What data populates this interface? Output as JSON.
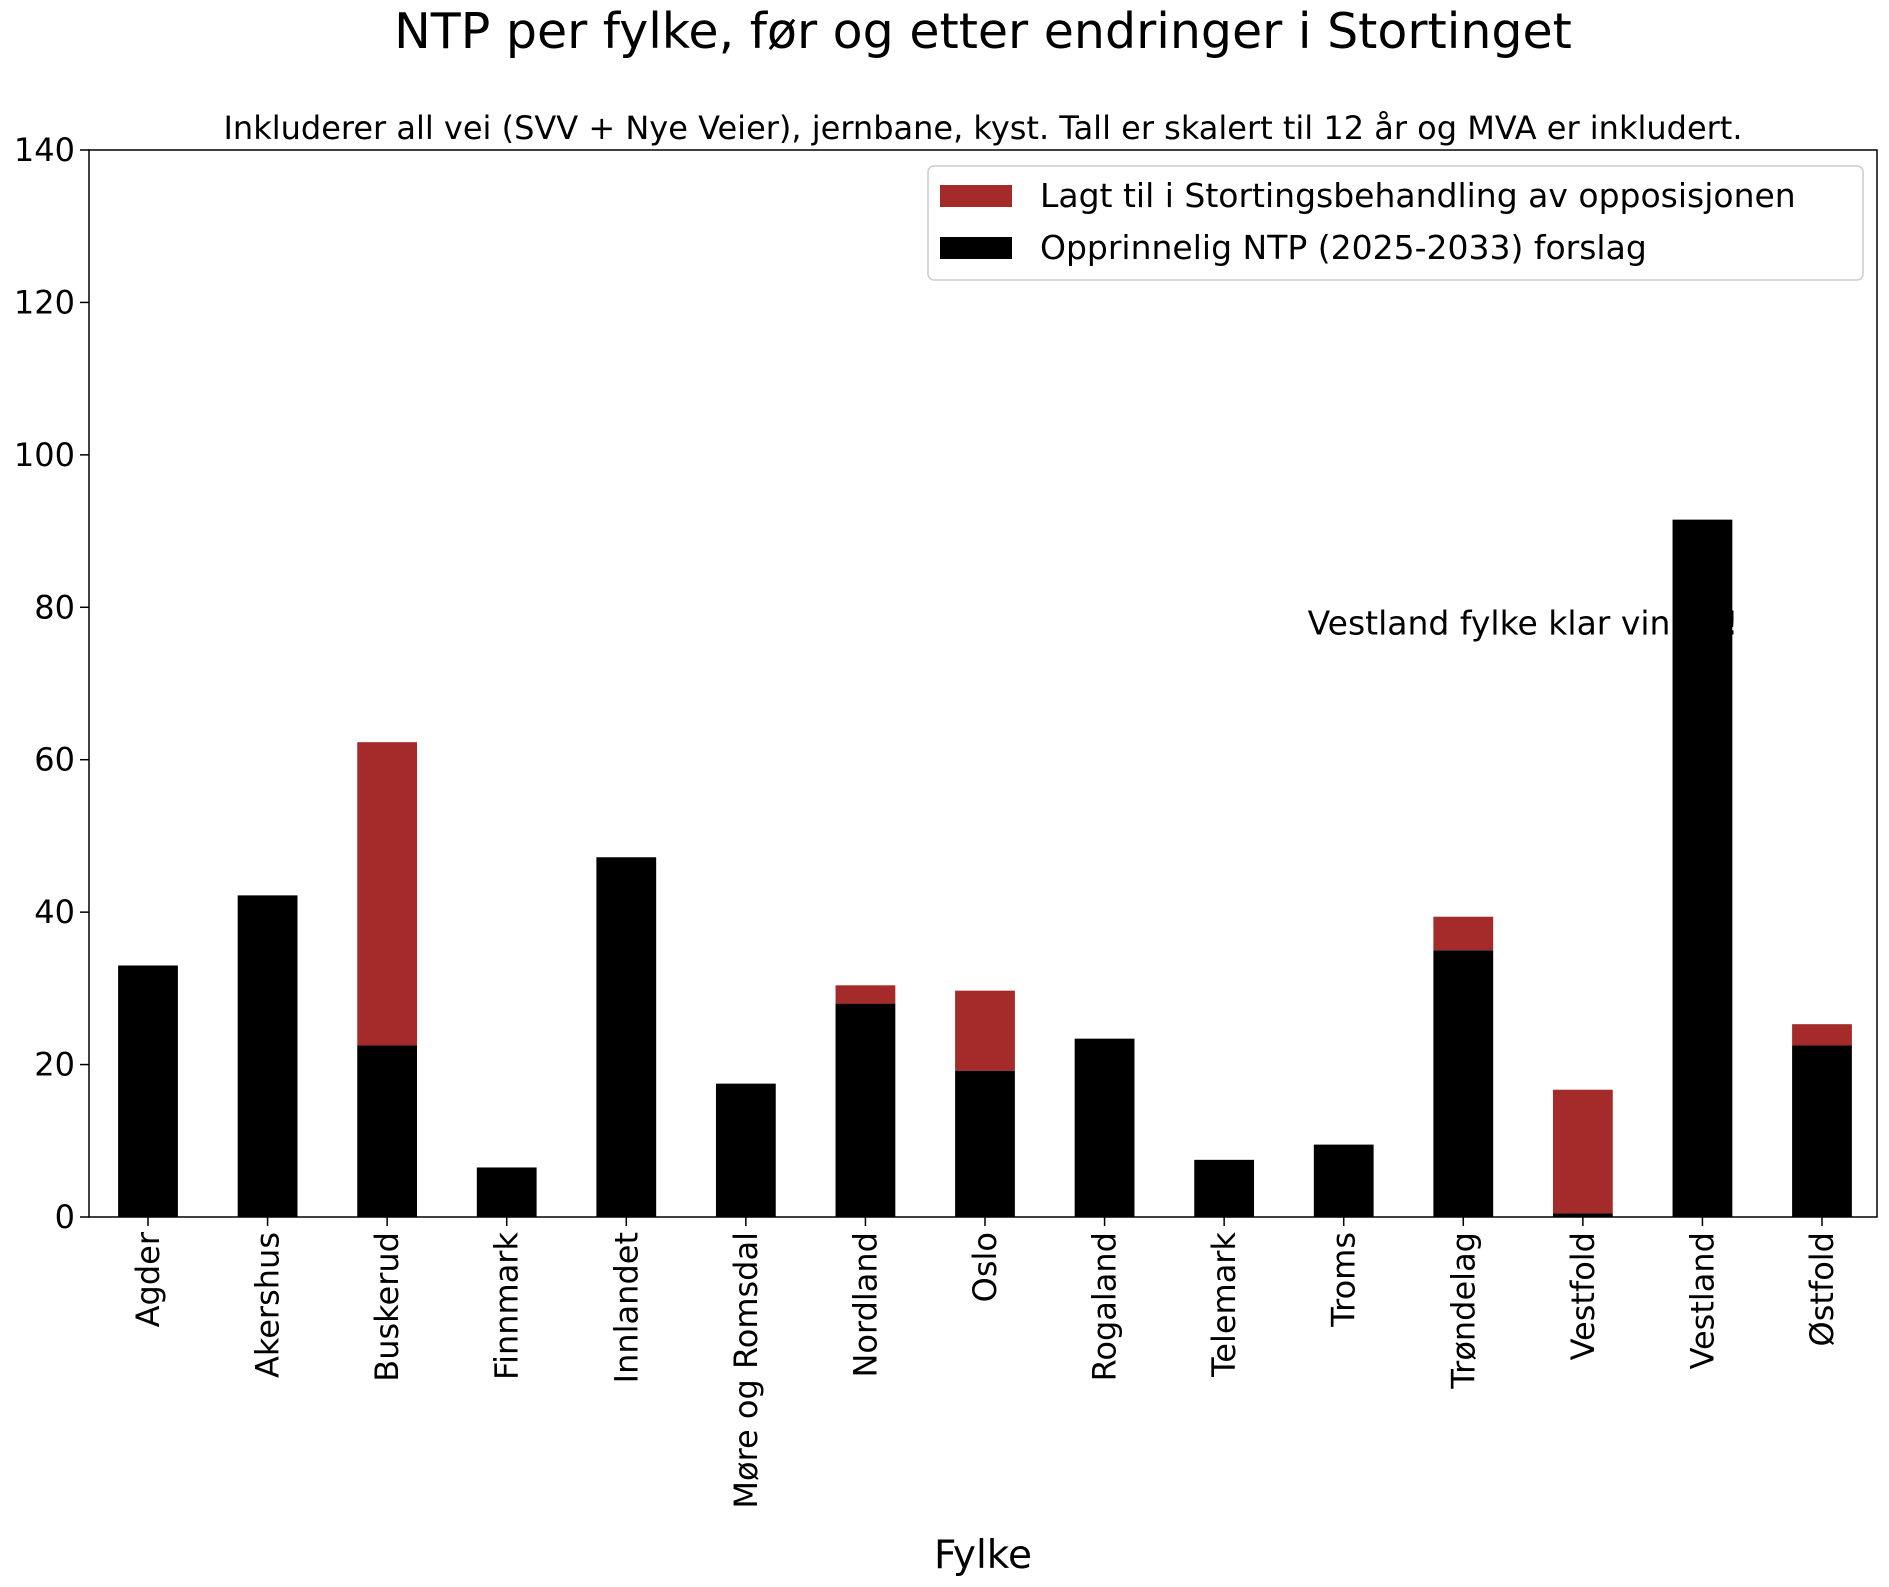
{
  "chart_data": {
    "type": "bar",
    "stacked": true,
    "title": "NTP per fylke, før og etter endringer i Stortinget",
    "subtitle": "Inkluderer all vei (SVV + Nye Veier), jernbane, kyst. Tall er skalert til 12 år og MVA er inkludert.",
    "xlabel": "Fylke",
    "ylabel": "",
    "ylim": [
      0,
      140
    ],
    "yticks": [
      0,
      20,
      40,
      60,
      80,
      100,
      120,
      140
    ],
    "categories": [
      "Agder",
      "Akershus",
      "Buskerud",
      "Finnmark",
      "Innlandet",
      "Møre og Romsdal",
      "Nordland",
      "Oslo",
      "Rogaland",
      "Telemark",
      "Troms",
      "Trøndelag",
      "Vestfold",
      "Vestland",
      "Østfold"
    ],
    "series": [
      {
        "name": "Opprinnelig NTP (2025-2033) forslag",
        "color": "#000000",
        "values": [
          33,
          42.2,
          22.5,
          6.5,
          47.2,
          17.5,
          28,
          19.2,
          23.4,
          7.5,
          9.5,
          35,
          0.5,
          91.5,
          22.5
        ]
      },
      {
        "name": "Lagt til i Stortingsbehandling av opposisjonen",
        "color": "#a52a2a",
        "values": [
          0,
          0,
          39.8,
          0,
          0,
          0,
          2.4,
          10.5,
          0,
          0,
          0,
          4.4,
          16.2,
          0,
          2.8
        ]
      }
    ],
    "legend": {
      "position": "upper right",
      "entries": [
        "Lagt til i Stortingsbehandling av opposisjonen",
        "Opprinnelig NTP (2025-2033) forslag"
      ]
    },
    "annotations": [
      {
        "text": "Vestland fylke klar vinner!",
        "x": 11.5,
        "y": 78
      }
    ]
  }
}
